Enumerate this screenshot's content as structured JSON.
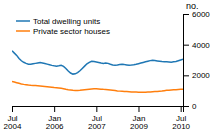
{
  "chart_data": {
    "type": "line",
    "categories": [
      "Jul\n2004",
      null,
      null,
      null,
      null,
      null,
      null,
      null,
      null,
      null,
      null,
      null,
      null,
      null,
      null,
      null,
      null,
      null,
      "Jan\n2006",
      null,
      null,
      null,
      null,
      null,
      null,
      null,
      null,
      null,
      null,
      null,
      null,
      null,
      null,
      null,
      null,
      null,
      "Jul\n2007",
      null,
      null,
      null,
      null,
      null,
      null,
      null,
      null,
      null,
      null,
      null,
      null,
      null,
      null,
      null,
      null,
      null,
      "Jan\n2009",
      null,
      null,
      null,
      null,
      null,
      null,
      null,
      null,
      null,
      null,
      null,
      null,
      null,
      null,
      null,
      null,
      null,
      "Jul\n2010",
      null
    ],
    "series": [
      {
        "name": "Total dwelling units",
        "values": [
          3600,
          3450,
          3300,
          3100,
          2950,
          2850,
          2780,
          2730,
          2720,
          2750,
          2780,
          2810,
          2840,
          2810,
          2770,
          2730,
          2690,
          2650,
          2620,
          2600,
          2620,
          2650,
          2580,
          2450,
          2280,
          2150,
          2080,
          2100,
          2180,
          2300,
          2450,
          2600,
          2750,
          2850,
          2920,
          2900,
          2870,
          2840,
          2800,
          2780,
          2800,
          2780,
          2720,
          2680,
          2660,
          2680,
          2710,
          2730,
          2700,
          2680,
          2660,
          2670,
          2690,
          2720,
          2760,
          2800,
          2840,
          2880,
          2920,
          2960,
          2980,
          2960,
          2940,
          2920,
          2900,
          2890,
          2880,
          2870,
          2860,
          2880,
          2900,
          2950,
          3000,
          3050
        ]
      },
      {
        "name": "Private sector houses",
        "values": [
          1600,
          1560,
          1520,
          1480,
          1440,
          1410,
          1390,
          1370,
          1355,
          1345,
          1335,
          1320,
          1305,
          1290,
          1275,
          1260,
          1240,
          1220,
          1200,
          1185,
          1170,
          1150,
          1125,
          1090,
          1060,
          1040,
          1020,
          1010,
          1005,
          1020,
          1040,
          1060,
          1080,
          1100,
          1115,
          1120,
          1125,
          1115,
          1100,
          1085,
          1075,
          1065,
          1045,
          1025,
          1005,
          985,
          970,
          960,
          950,
          940,
          930,
          920,
          910,
          905,
          900,
          895,
          895,
          900,
          910,
          920,
          930,
          940,
          950,
          965,
          980,
          1000,
          1020,
          1035,
          1045,
          1055,
          1065,
          1075,
          1085,
          1095
        ]
      }
    ],
    "ylabel": "no.",
    "ylim": [
      0,
      6000
    ],
    "yticks": [
      0,
      2000,
      4000,
      6000
    ],
    "grid": false,
    "legend": "upper left"
  }
}
